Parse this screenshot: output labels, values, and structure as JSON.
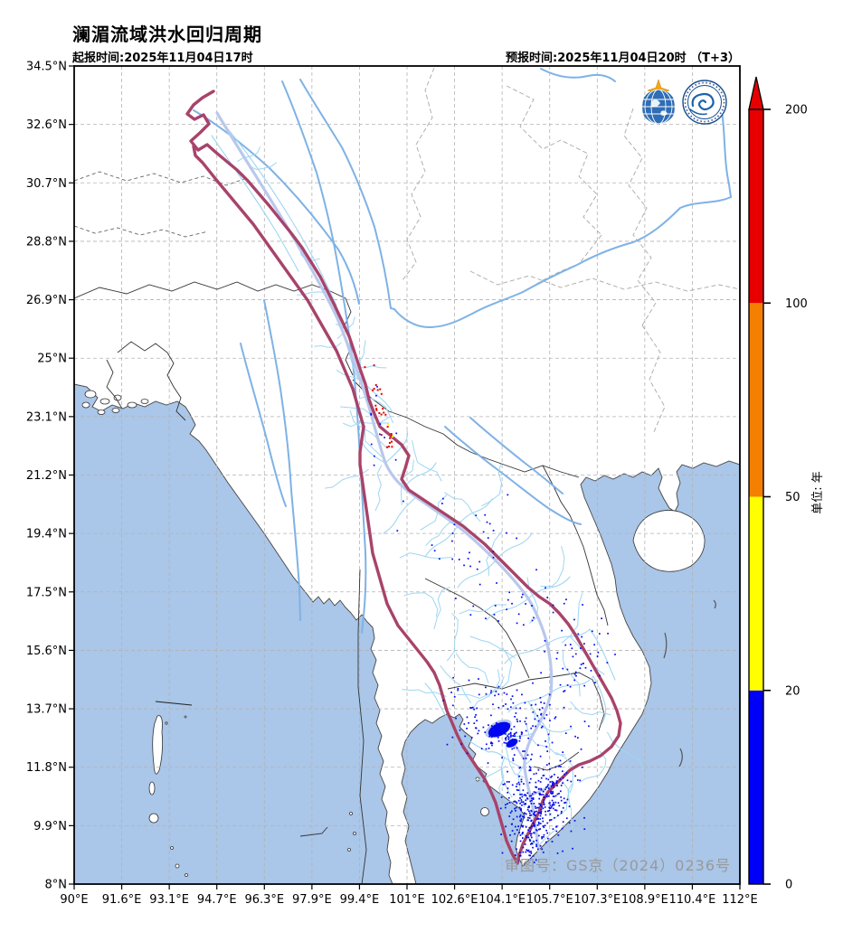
{
  "header": {
    "title": "澜湄流域洪水回归周期",
    "init_time": "起报时间:2025年11月04日17时",
    "forecast_time": "预报时间:2025年11月04日20时 （T+3）"
  },
  "map": {
    "x_axis": [
      "90°E",
      "91.6°E",
      "93.1°E",
      "94.7°E",
      "96.3°E",
      "97.9°E",
      "99.4°E",
      "101°E",
      "102.6°E",
      "104.1°E",
      "105.7°E",
      "107.3°E",
      "108.9°E",
      "110.4°E",
      "112°E"
    ],
    "y_axis": [
      "34.5°N",
      "32.6°N",
      "30.7°N",
      "28.8°N",
      "26.9°N",
      "25°N",
      "23.1°N",
      "21.2°N",
      "19.4°N",
      "17.5°N",
      "15.6°N",
      "13.7°N",
      "11.8°N",
      "9.9°N",
      "8°N"
    ],
    "license_note": "审图号：GS京（2024）0236号",
    "logos": [
      "wmo-logo",
      "cma-logo"
    ],
    "feature_colors": {
      "sea": "#aac6e8",
      "land": "#ffffff",
      "basin_boundary": "#a8436a",
      "main_river": "#b9c8ec",
      "major_river": "#7fb2e5",
      "tributary": "#9fd6f2"
    }
  },
  "colorbar": {
    "unit": "单位: 年",
    "ticks": [
      "0",
      "20",
      "50",
      "100",
      "200"
    ],
    "levels": [
      0,
      20,
      50,
      100,
      200
    ],
    "colors": [
      "#0000fa",
      "#ffff00",
      "#f57f00",
      "#e80000"
    ],
    "flood_point_colors": {
      "low": "#0008f0",
      "mid": "#ffee00",
      "high": "#e80000"
    }
  },
  "chart_data": {
    "type": "heatmap",
    "title": "澜湄流域洪水回归周期",
    "legend_unit": "单位: 年",
    "scale_levels": [
      0,
      20,
      50,
      100,
      200
    ],
    "scale_colors": [
      "#0000fa",
      "#ffff00",
      "#f57f00",
      "#e80000"
    ],
    "x_range_deg_e": [
      90,
      112
    ],
    "y_range_deg_n": [
      8,
      34.5
    ],
    "notes": "blue flood points (<20y) clustered in Tonle Sap and Mekong Delta; red points (>100y) along upper Lancang in Yunnan"
  }
}
